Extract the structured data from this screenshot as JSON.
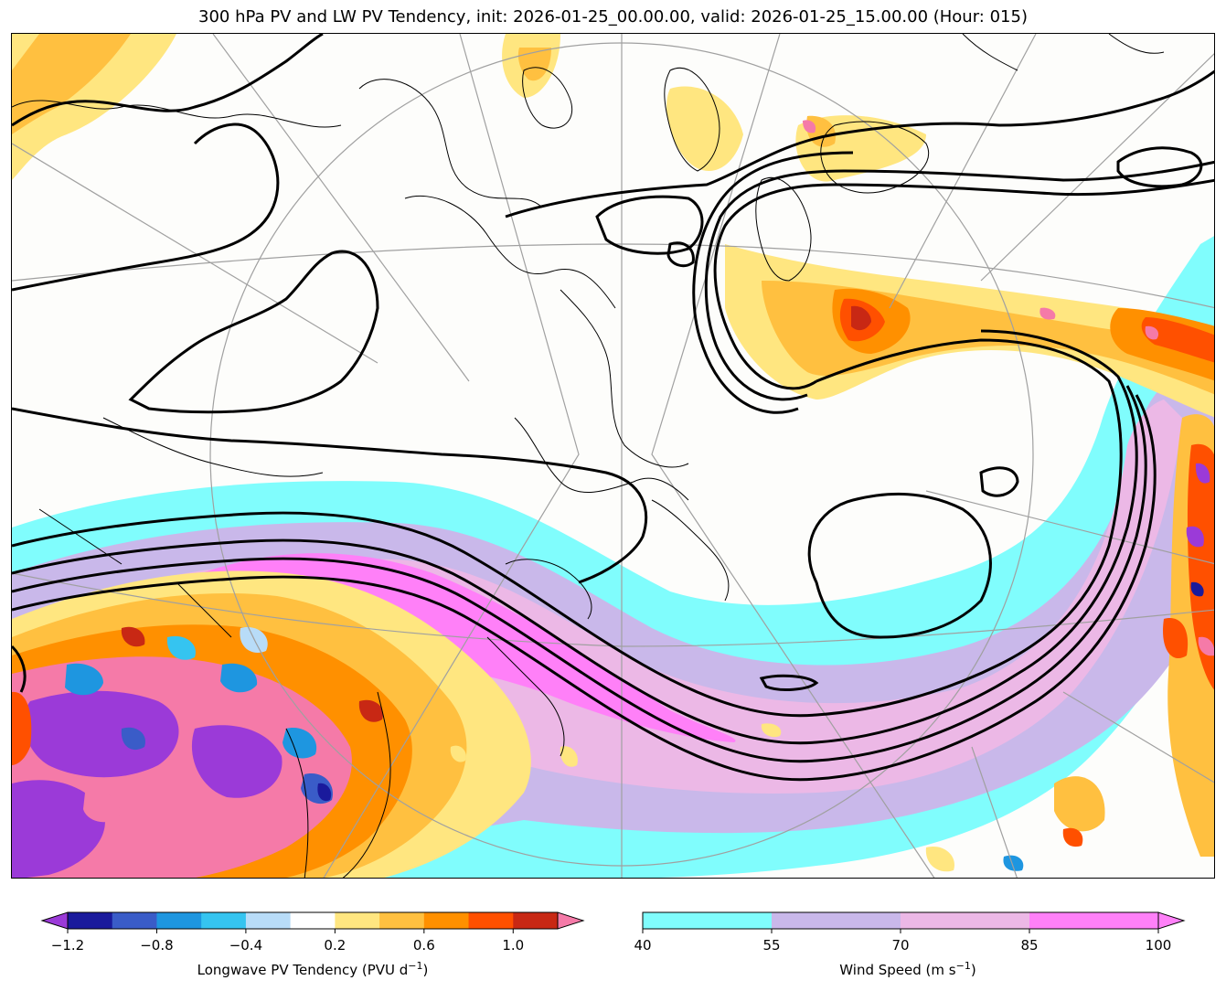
{
  "title": "300 hPa PV and LW PV Tendency, init: 2026-01-25_00.00.00, valid: 2026-01-25_15.00.00 (Hour: 015)",
  "map": {
    "projection": "polar-stereographic",
    "region": "North America / North Atlantic",
    "layers": [
      "wind-speed-shading",
      "pv-tendency-shading",
      "pv-contours",
      "coastlines",
      "lat-lon-grid"
    ]
  },
  "colorbar_left": {
    "label_text": "Longwave PV Tendency (PVU d",
    "label_exp": "−1",
    "label_close": ")",
    "ticks": [
      "−1.2",
      "−0.8",
      "−0.4",
      "0.2",
      "0.6",
      "1.0"
    ],
    "bounds": [
      -1.2,
      -1.0,
      -0.8,
      -0.6,
      -0.4,
      -0.2,
      0.2,
      0.4,
      0.6,
      0.8,
      1.0,
      1.2
    ],
    "tick_values": [
      -1.2,
      -0.8,
      -0.4,
      0.2,
      0.6,
      1.0
    ],
    "colors": [
      "#1a1a9c",
      "#3a5cc8",
      "#1e96e0",
      "#35c4f0",
      "#b8dcf8",
      "#ffffff",
      "#ffe680",
      "#ffc040",
      "#ff9000",
      "#ff5000",
      "#c82814"
    ],
    "extend_low_color": "#9b3ad8",
    "extend_high_color": "#f57aa8"
  },
  "colorbar_right": {
    "label_text": "Wind Speed (m s",
    "label_exp": "−1",
    "label_close": ")",
    "ticks": [
      "40",
      "55",
      "70",
      "85",
      "100"
    ],
    "bounds": [
      40,
      55,
      70,
      85,
      100
    ],
    "colors": [
      "#80fdfd",
      "#c9b8ea",
      "#ecb8e6",
      "#ff80f8"
    ],
    "extend_high_color": "#ff80f8"
  }
}
